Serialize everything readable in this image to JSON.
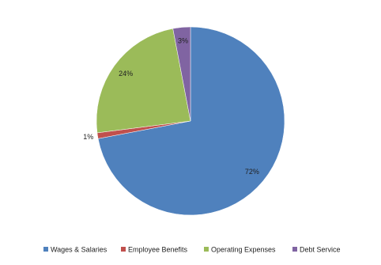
{
  "chart_data": {
    "type": "pie",
    "categories": [
      "Wages & Salaries",
      "Employee Benefits",
      "Operating Expenses",
      "Debt Service"
    ],
    "values": [
      72,
      1,
      24,
      3
    ],
    "value_labels": [
      "72%",
      "1%",
      "24%",
      "3%"
    ],
    "colors": [
      "#4f81bd",
      "#c0504d",
      "#9bbb59",
      "#8064a2"
    ],
    "legend": "bottom"
  }
}
